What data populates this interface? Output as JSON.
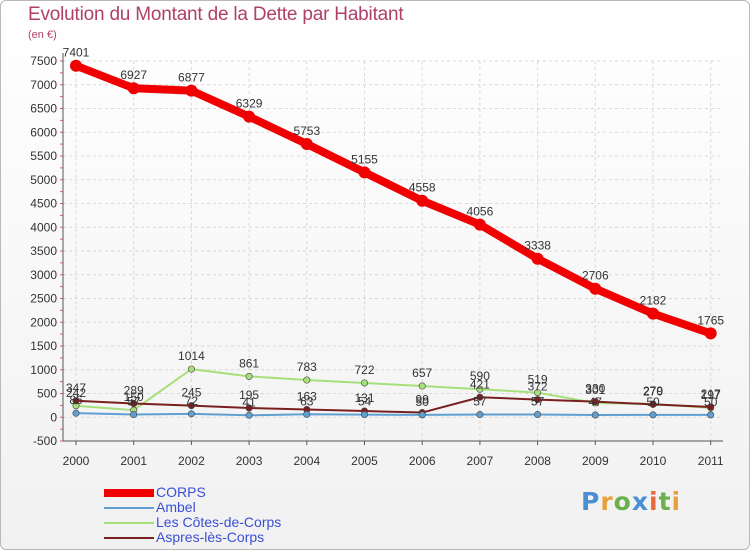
{
  "chart_data": {
    "type": "line",
    "title": "Evolution du Montant de la Dette par Habitant",
    "ylabel": "(en €)",
    "xlabel": "",
    "ylim": [
      -500,
      7500
    ],
    "yticks": [
      -500,
      0,
      500,
      1000,
      1500,
      2000,
      2500,
      3000,
      3500,
      4000,
      4500,
      5000,
      5500,
      6000,
      6500,
      7000,
      7500
    ],
    "categories": [
      "2000",
      "2001",
      "2002",
      "2003",
      "2004",
      "2005",
      "2006",
      "2007",
      "2008",
      "2009",
      "2010",
      "2011"
    ],
    "series": [
      {
        "name": "CORPS",
        "color": "#f00000",
        "values": [
          7401,
          6927,
          6877,
          6329,
          5753,
          5155,
          4558,
          4056,
          3338,
          2706,
          2182,
          1765
        ]
      },
      {
        "name": "Ambel",
        "color": "#5f9fd2",
        "values": [
          86,
          57,
          72,
          41,
          63,
          54,
          50,
          57,
          57,
          47,
          50,
          50
        ]
      },
      {
        "name": "Les Côtes-de-Corps",
        "color": "#a6e07a",
        "values": [
          242,
          150,
          1014,
          861,
          783,
          722,
          657,
          590,
          519,
          301,
          279,
          197
        ]
      },
      {
        "name": "Aspres-lès-Corps",
        "color": "#7a1f1f",
        "values": [
          347,
          289,
          245,
          195,
          163,
          131,
          99,
          421,
          372,
          330,
          270,
          217
        ]
      }
    ],
    "labels": [
      [
        "7401",
        "6927",
        "6877",
        "6329",
        "5753",
        "5155",
        "4558",
        "4056",
        "3338",
        "2706",
        "2182",
        "1765"
      ],
      [
        "86",
        "57",
        "72",
        "41",
        "63",
        "54",
        "50",
        "57",
        "57",
        "47",
        "50",
        "50"
      ],
      [
        "242",
        "150",
        "1014",
        "861",
        "783",
        "722",
        "657",
        "590",
        "519",
        "301",
        "279",
        "197"
      ],
      [
        "347",
        "289",
        "245",
        "195",
        "163",
        "131",
        "99",
        "421",
        "372",
        "330",
        "270",
        "217"
      ]
    ],
    "legend": "bottom-left"
  },
  "logo": {
    "letters": [
      "P",
      "r",
      "o",
      "x",
      "i",
      "t",
      "i"
    ]
  }
}
